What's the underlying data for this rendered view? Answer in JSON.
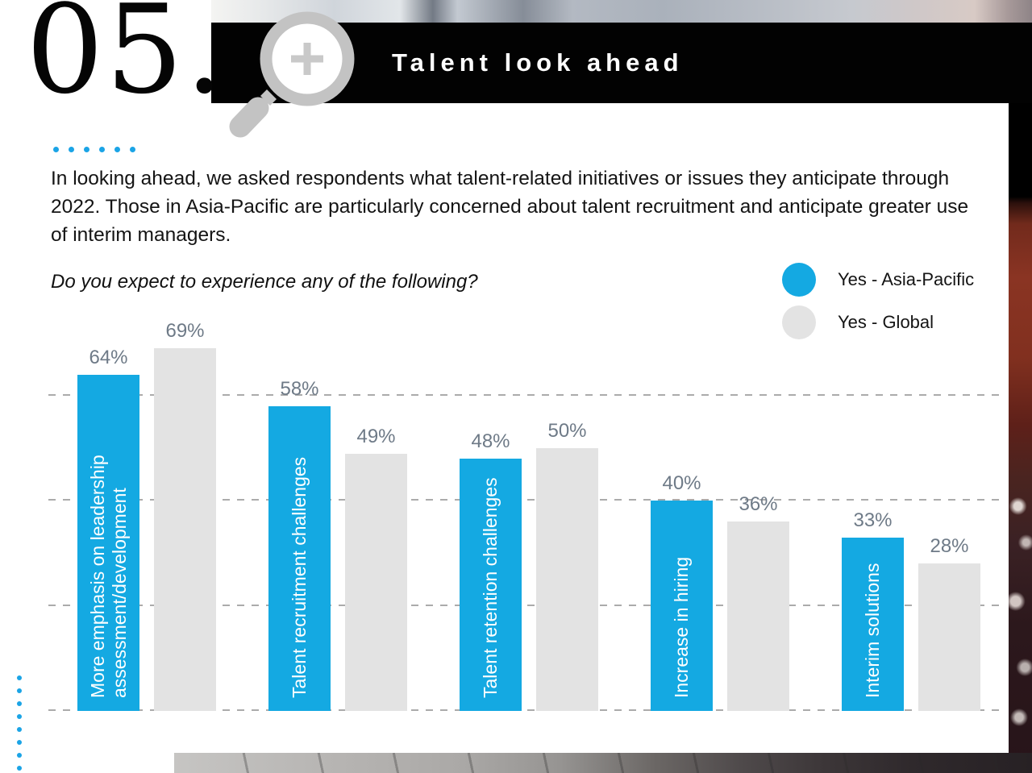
{
  "page": {
    "section_number": "05.",
    "title": "Talent look ahead"
  },
  "intro_text": "In looking ahead, we asked respondents what talent-related initiatives or issues they anticipate through 2022. Those in Asia-Pacific are particularly concerned about talent recruitment and anticipate greater use of interim managers.",
  "question_text": "Do you expect to experience any of the following?",
  "legend": [
    {
      "label": "Yes - Asia-Pacific",
      "color": "#14a9e2"
    },
    {
      "label": "Yes - Global",
      "color": "#e3e3e3"
    }
  ],
  "icons": {
    "magnifier": "magnifying-glass-plus-icon"
  },
  "colors": {
    "accent_blue": "#14a9e2",
    "bar_gray": "#e3e3e3",
    "banner_black": "#020202",
    "value_label_gray": "#6e7a87",
    "dot_blue": "#1ba4e6"
  },
  "chart_data": {
    "type": "bar",
    "title": "Do you expect to experience any of the following?",
    "categories": [
      "More emphasis on leadership assessment/development",
      "Talent recruitment challenges",
      "Talent retention challenges",
      "Increase in hiring",
      "Interim solutions"
    ],
    "series": [
      {
        "name": "Yes - Asia-Pacific",
        "color": "#14a9e2",
        "values": [
          64,
          58,
          48,
          40,
          33
        ]
      },
      {
        "name": "Yes - Global",
        "color": "#e3e3e3",
        "values": [
          69,
          49,
          50,
          36,
          28
        ]
      }
    ],
    "value_label_format": "{v}%",
    "ylim": [
      0,
      100
    ],
    "gridlines_pct": [
      0,
      20,
      40,
      60
    ],
    "grid_style": "horizontal-dashed",
    "legend_position": "top-right",
    "category_label_placement": "inside-first-series-bar-rotated"
  }
}
